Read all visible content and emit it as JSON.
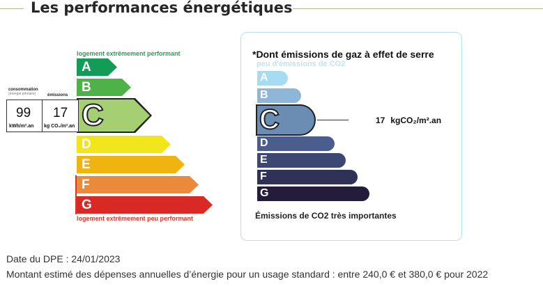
{
  "title": "Les performances énergétiques",
  "energy": {
    "top_label": "logement extrêmement performant",
    "bottom_label": "logement extrêmement peu performant",
    "classes": [
      {
        "letter": "A",
        "color": "#129c57"
      },
      {
        "letter": "B",
        "color": "#4fb248"
      },
      {
        "letter": "C",
        "color": "#a4cf73"
      },
      {
        "letter": "D",
        "color": "#f2e51b"
      },
      {
        "letter": "E",
        "color": "#f0b410"
      },
      {
        "letter": "F",
        "color": "#ec8a3c"
      },
      {
        "letter": "G",
        "color": "#d92925"
      }
    ],
    "selected": "C",
    "consumption_label": "consommation",
    "consumption_sublabel": "(énergie primaire)",
    "emission_label": "émissions",
    "consumption_value": "99",
    "consumption_unit": "kWh/m².an",
    "emission_value": "17",
    "emission_unit": "kg CO₂/m².an"
  },
  "ges": {
    "title": "*Dont émissions de gaz à effet de serre",
    "top_label": "peu d'émissions de CO2",
    "bottom_label": "Émissions de CO2 très importantes",
    "classes": [
      {
        "letter": "A",
        "color": "#a6dbf1"
      },
      {
        "letter": "B",
        "color": "#8db6d8"
      },
      {
        "letter": "C",
        "color": "#6b8db4"
      },
      {
        "letter": "D",
        "color": "#4a5d8d"
      },
      {
        "letter": "E",
        "color": "#3c4873"
      },
      {
        "letter": "F",
        "color": "#2f3157"
      },
      {
        "letter": "G",
        "color": "#231d3b"
      }
    ],
    "selected": "C",
    "value": "17",
    "unit": "kgCO₂/m².an"
  },
  "footer": {
    "date": "Date du DPE : 24/01/2023",
    "montant": "Montant estimé des dépenses annuelles d’énergie pour un usage standard : entre 240,0 € et 380,0 € pour 2022"
  }
}
